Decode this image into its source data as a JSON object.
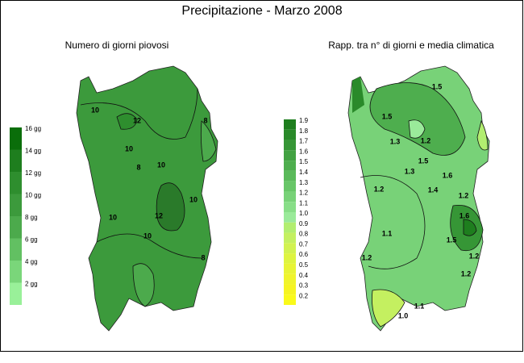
{
  "title": "Precipitazione - Marzo 2008",
  "left_map": {
    "title": "Numero di giorni piovosi",
    "legend": [
      {
        "label": "16 gg",
        "color": "#0a6e0a"
      },
      {
        "label": "14 gg",
        "color": "#1e7e1e"
      },
      {
        "label": "12 gg",
        "color": "#2e8e2e"
      },
      {
        "label": "10 gg",
        "color": "#3c9a3c"
      },
      {
        "label": "8 gg",
        "color": "#4caa4c"
      },
      {
        "label": "6 gg",
        "color": "#62c062"
      },
      {
        "label": "4 gg",
        "color": "#7ad67a"
      },
      {
        "label": "2 gg",
        "color": "#99f099"
      }
    ],
    "contour_labels": [
      "10",
      "12",
      "10",
      "8",
      "10",
      "10",
      "12",
      "10",
      "8",
      "10",
      "8"
    ]
  },
  "right_map": {
    "title": "Rapp. tra n° di giorni e media climatica",
    "legend": [
      {
        "label": "1.9",
        "color": "#1e7e1e"
      },
      {
        "label": "1.8",
        "color": "#2a8a2a"
      },
      {
        "label": "1.7",
        "color": "#369636"
      },
      {
        "label": "1.6",
        "color": "#42a242"
      },
      {
        "label": "1.5",
        "color": "#4eae4e"
      },
      {
        "label": "1.4",
        "color": "#5aba5a"
      },
      {
        "label": "1.3",
        "color": "#68c668"
      },
      {
        "label": "1.2",
        "color": "#78d278"
      },
      {
        "label": "1.1",
        "color": "#88de88"
      },
      {
        "label": "1.0",
        "color": "#9aea9a"
      },
      {
        "label": "0.9",
        "color": "#b2ee70"
      },
      {
        "label": "0.8",
        "color": "#c4f060"
      },
      {
        "label": "0.7",
        "color": "#d2f250"
      },
      {
        "label": "0.6",
        "color": "#def440"
      },
      {
        "label": "0.5",
        "color": "#e8f436"
      },
      {
        "label": "0.4",
        "color": "#f0f42c"
      },
      {
        "label": "0.3",
        "color": "#f6f422"
      },
      {
        "label": "0.2",
        "color": "#fafa1a"
      }
    ],
    "contour_labels": [
      "1.5",
      "1.5",
      "1.3",
      "1.2",
      "1.5",
      "1.3",
      "1.4",
      "1.6",
      "1.2",
      "1.2",
      "1.6",
      "1.5",
      "1.2",
      "1.1",
      "1.2",
      "1.2",
      "1.0",
      "1.1"
    ]
  }
}
